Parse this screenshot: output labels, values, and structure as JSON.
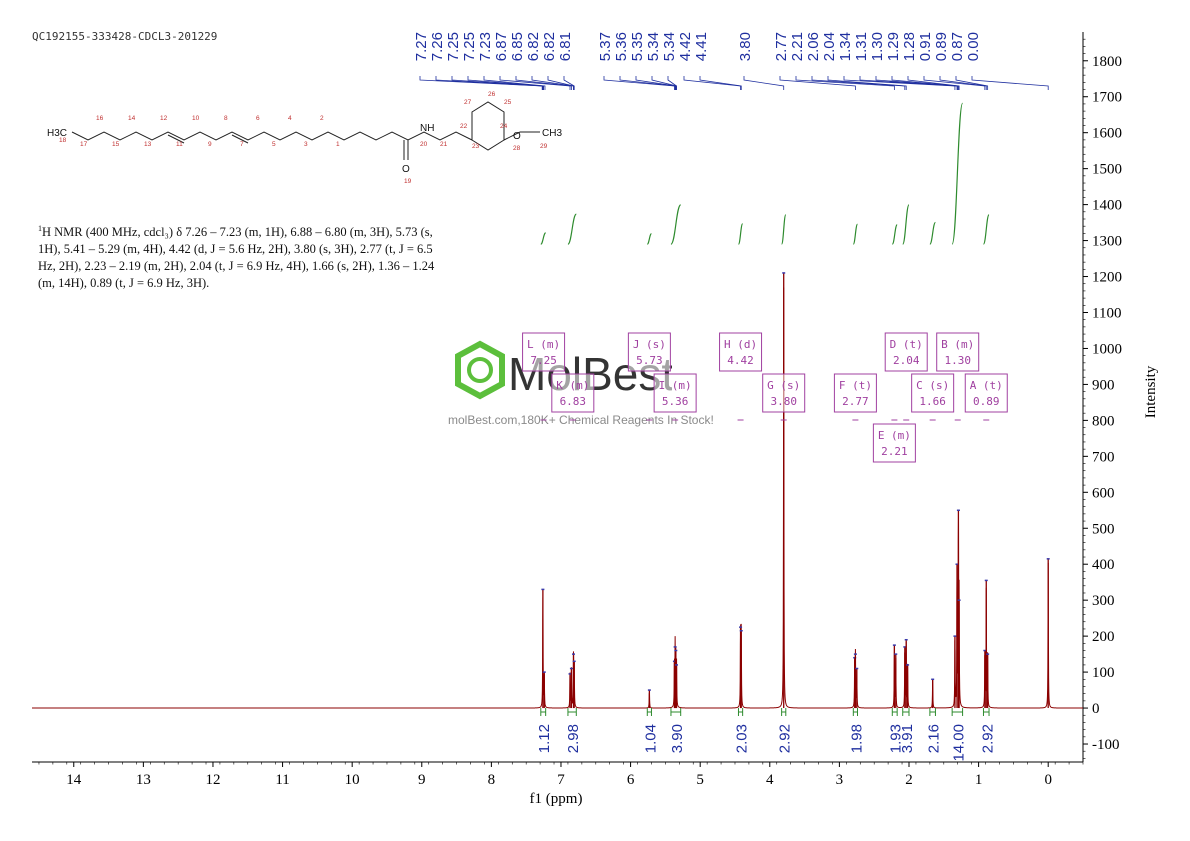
{
  "header": {
    "sample_id": "QC192155-333428-CDCL3-201229"
  },
  "nmr_text": {
    "nucleus_sup": "1",
    "body": "H NMR (400 MHz, cdcl₃) δ 7.26 – 7.23 (m, 1H), 6.88 – 6.80 (m, 3H), 5.73 (s, 1H), 5.41 – 5.29 (m, 4H), 4.42 (d, J = 5.6 Hz, 2H), 3.80 (s, 3H), 2.77 (t, J = 6.5 Hz, 2H), 2.23 – 2.19 (m, 2H), 2.04 (t, J = 6.9 Hz, 4H), 1.66 (s, 2H), 1.36 – 1.24 (m, 14H), 0.89 (t, J = 6.9 Hz, 3H)."
  },
  "watermark": {
    "brand": "MolBest",
    "tagline": "molBest.com,180K+ Chemical Reagents In Stock!"
  },
  "molecule": {
    "atoms": [
      "H3C",
      "NH",
      "O",
      "O",
      "CH3"
    ],
    "numbers": [
      "18",
      "17",
      "16",
      "15",
      "14",
      "13",
      "12",
      "11",
      "10",
      "9",
      "8",
      "7",
      "6",
      "5",
      "4",
      "3",
      "2",
      "1",
      "19",
      "20",
      "21",
      "22",
      "23",
      "24",
      "25",
      "26",
      "27",
      "28",
      "29"
    ]
  },
  "colors": {
    "spectrum": "#8b0000",
    "integral": "#2e8b2e",
    "peak_label": "#1f2f9f",
    "multiplet_box": "#a040a0",
    "axis": "#000000",
    "logo": "#3a9a3a"
  },
  "chart_data": {
    "type": "line",
    "title": "",
    "xlabel": "f1 (ppm)",
    "ylabel": "Intensity",
    "xlim": [
      14.6,
      -0.5
    ],
    "x_reversed": true,
    "ylim": [
      -150,
      1880
    ],
    "x_ticks": [
      14,
      13,
      12,
      11,
      10,
      9,
      8,
      7,
      6,
      5,
      4,
      3,
      2,
      1,
      0
    ],
    "y_ticks": [
      -100,
      0,
      100,
      200,
      300,
      400,
      500,
      600,
      700,
      800,
      900,
      1000,
      1100,
      1200,
      1300,
      1400,
      1500,
      1600,
      1700,
      1800
    ],
    "peaks": [
      {
        "ppm": 7.26,
        "height": 330
      },
      {
        "ppm": 7.24,
        "height": 100
      },
      {
        "ppm": 6.87,
        "height": 95
      },
      {
        "ppm": 6.85,
        "height": 110
      },
      {
        "ppm": 6.82,
        "height": 150
      },
      {
        "ppm": 6.81,
        "height": 130
      },
      {
        "ppm": 5.73,
        "height": 50
      },
      {
        "ppm": 5.37,
        "height": 130
      },
      {
        "ppm": 5.36,
        "height": 170
      },
      {
        "ppm": 5.35,
        "height": 160
      },
      {
        "ppm": 5.34,
        "height": 120
      },
      {
        "ppm": 4.42,
        "height": 225
      },
      {
        "ppm": 4.41,
        "height": 215
      },
      {
        "ppm": 3.8,
        "height": 1210
      },
      {
        "ppm": 2.78,
        "height": 140
      },
      {
        "ppm": 2.77,
        "height": 150
      },
      {
        "ppm": 2.75,
        "height": 110
      },
      {
        "ppm": 2.21,
        "height": 175
      },
      {
        "ppm": 2.19,
        "height": 150
      },
      {
        "ppm": 2.06,
        "height": 170
      },
      {
        "ppm": 2.04,
        "height": 190
      },
      {
        "ppm": 2.02,
        "height": 120
      },
      {
        "ppm": 1.66,
        "height": 80
      },
      {
        "ppm": 1.34,
        "height": 200
      },
      {
        "ppm": 1.31,
        "height": 400
      },
      {
        "ppm": 1.29,
        "height": 550
      },
      {
        "ppm": 1.28,
        "height": 300
      },
      {
        "ppm": 0.91,
        "height": 160
      },
      {
        "ppm": 0.89,
        "height": 355
      },
      {
        "ppm": 0.87,
        "height": 150
      },
      {
        "ppm": 0.0,
        "height": 415
      }
    ],
    "peak_labels": [
      "7.27",
      "7.26",
      "7.25",
      "7.25",
      "7.23",
      "6.87",
      "6.85",
      "6.82",
      "6.82",
      "6.81",
      "5.37",
      "5.36",
      "5.35",
      "5.34",
      "5.34",
      "4.42",
      "4.41",
      "3.80",
      "2.77",
      "2.21",
      "2.06",
      "2.04",
      "1.34",
      "1.31",
      "1.30",
      "1.29",
      "1.28",
      "0.91",
      "0.89",
      "0.87",
      "0.00"
    ],
    "peak_label_ppm": [
      7.27,
      7.26,
      7.25,
      7.25,
      7.23,
      6.87,
      6.85,
      6.82,
      6.82,
      6.81,
      5.37,
      5.36,
      5.35,
      5.34,
      5.34,
      4.42,
      4.41,
      3.8,
      2.77,
      2.21,
      2.06,
      2.04,
      1.34,
      1.31,
      1.3,
      1.29,
      1.28,
      0.91,
      0.89,
      0.87,
      0.0
    ],
    "integrals": [
      {
        "ppm_from": 7.29,
        "ppm_to": 7.22,
        "value": "1.12"
      },
      {
        "ppm_from": 6.9,
        "ppm_to": 6.78,
        "value": "2.98"
      },
      {
        "ppm_from": 5.76,
        "ppm_to": 5.7,
        "value": "1.04"
      },
      {
        "ppm_from": 5.42,
        "ppm_to": 5.28,
        "value": "3.90"
      },
      {
        "ppm_from": 4.45,
        "ppm_to": 4.39,
        "value": "2.03"
      },
      {
        "ppm_from": 3.83,
        "ppm_to": 3.77,
        "value": "2.92"
      },
      {
        "ppm_from": 2.8,
        "ppm_to": 2.74,
        "value": "1.98"
      },
      {
        "ppm_from": 2.24,
        "ppm_to": 2.17,
        "value": "1.93"
      },
      {
        "ppm_from": 2.09,
        "ppm_to": 2.0,
        "value": "3.91"
      },
      {
        "ppm_from": 1.7,
        "ppm_to": 1.62,
        "value": "2.16"
      },
      {
        "ppm_from": 1.38,
        "ppm_to": 1.23,
        "value": "14.00"
      },
      {
        "ppm_from": 0.93,
        "ppm_to": 0.85,
        "value": "2.92"
      }
    ],
    "multiplets": [
      {
        "label": "L (m)",
        "shift": "7.25",
        "ppm": 7.25,
        "row": 0
      },
      {
        "label": "K (m)",
        "shift": "6.83",
        "ppm": 6.83,
        "row": 1
      },
      {
        "label": "J (s)",
        "shift": "5.73",
        "ppm": 5.73,
        "row": 0
      },
      {
        "label": "I (m)",
        "shift": "5.36",
        "ppm": 5.36,
        "row": 1
      },
      {
        "label": "H (d)",
        "shift": "4.42",
        "ppm": 4.42,
        "row": 0
      },
      {
        "label": "G (s)",
        "shift": "3.80",
        "ppm": 3.8,
        "row": 1
      },
      {
        "label": "F (t)",
        "shift": "2.77",
        "ppm": 2.77,
        "row": 1
      },
      {
        "label": "E (m)",
        "shift": "2.21",
        "ppm": 2.21,
        "row": 2
      },
      {
        "label": "D (t)",
        "shift": "2.04",
        "ppm": 2.04,
        "row": 0
      },
      {
        "label": "C (s)",
        "shift": "1.66",
        "ppm": 1.66,
        "row": 1
      },
      {
        "label": "B (m)",
        "shift": "1.30",
        "ppm": 1.3,
        "row": 0
      },
      {
        "label": "A (t)",
        "shift": "0.89",
        "ppm": 0.89,
        "row": 1
      }
    ]
  }
}
